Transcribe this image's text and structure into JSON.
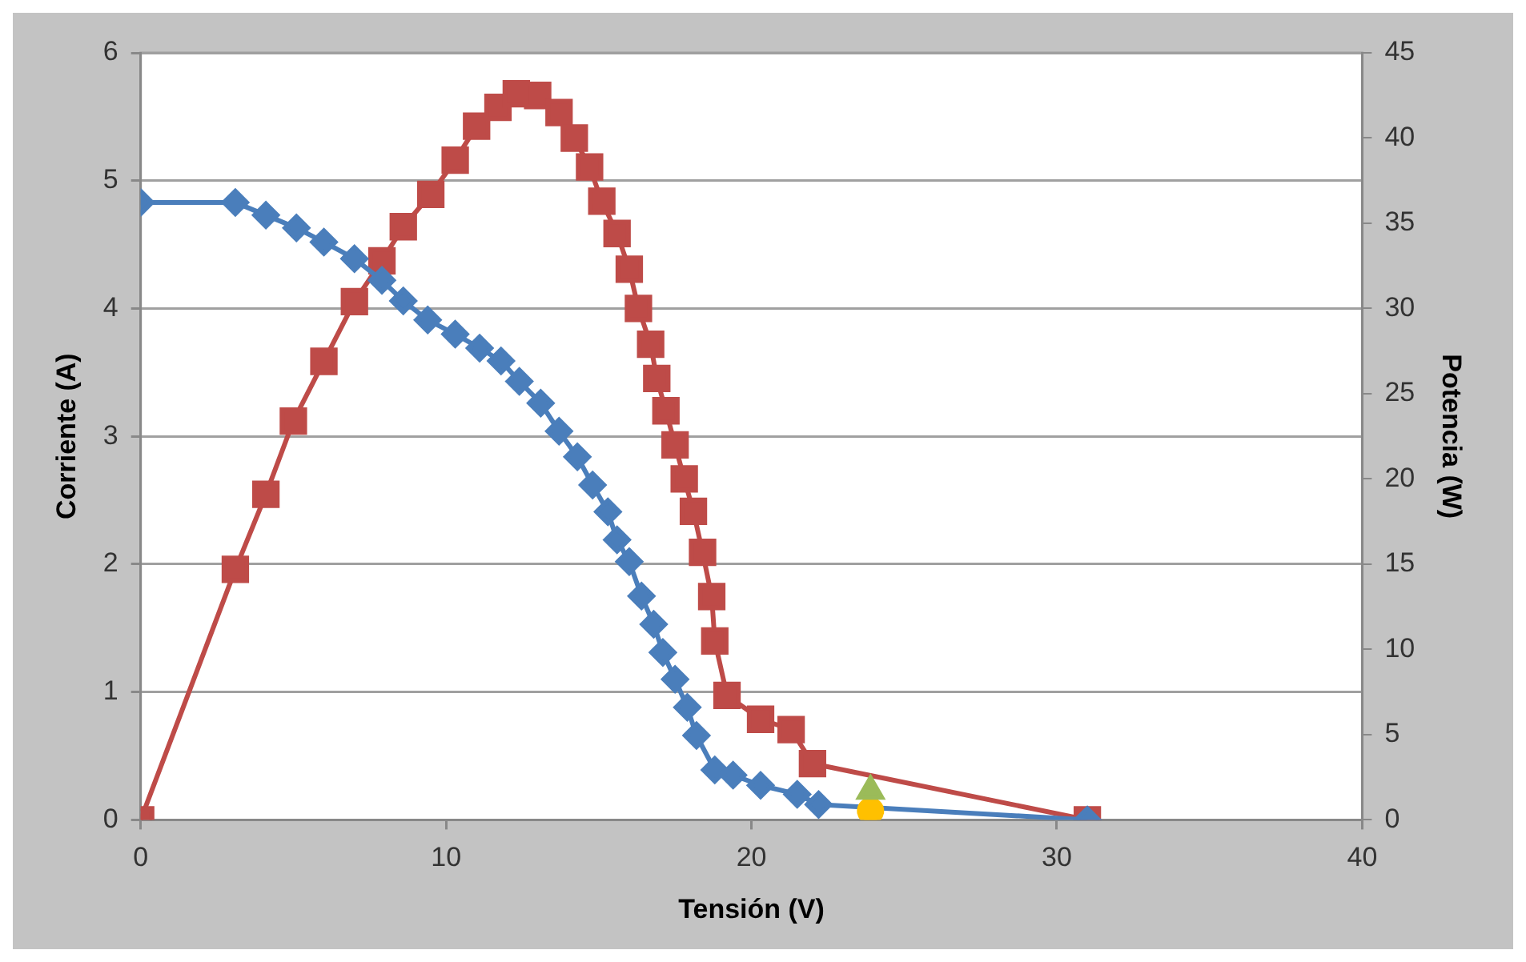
{
  "chart_data": {
    "type": "line",
    "xlabel": "Tensión (V)",
    "ylabel": "Corriente (A)",
    "y2label": "Potencia (W)",
    "xlim": [
      0,
      40
    ],
    "xticks": [
      0,
      10,
      20,
      30,
      40
    ],
    "ylim": [
      0,
      6
    ],
    "yticks": [
      0,
      1,
      2,
      3,
      4,
      5,
      6
    ],
    "y2lim": [
      0,
      45
    ],
    "y2ticks": [
      0,
      5,
      10,
      15,
      20,
      25,
      30,
      35,
      40,
      45
    ],
    "grid": "y",
    "legend": false,
    "series": [
      {
        "axis": "y",
        "marker": "diamond",
        "color": "#4a7ebb",
        "x": [
          0,
          3.1,
          4.1,
          5.1,
          6.0,
          7.0,
          7.9,
          8.6,
          9.4,
          10.3,
          11.1,
          11.8,
          12.4,
          13.1,
          13.7,
          14.3,
          14.8,
          15.3,
          15.6,
          16.0,
          16.4,
          16.8,
          17.1,
          17.5,
          17.9,
          18.2,
          18.8,
          19.4,
          20.3,
          21.5,
          22.2,
          31
        ],
        "values": [
          4.83,
          4.83,
          4.73,
          4.63,
          4.52,
          4.39,
          4.22,
          4.06,
          3.91,
          3.8,
          3.69,
          3.59,
          3.43,
          3.26,
          3.04,
          2.84,
          2.62,
          2.41,
          2.19,
          2.02,
          1.75,
          1.53,
          1.31,
          1.1,
          0.88,
          0.66,
          0.39,
          0.35,
          0.27,
          0.2,
          0.12,
          0
        ]
      },
      {
        "axis": "y2",
        "marker": "square",
        "color": "#be4b48",
        "x": [
          0,
          3.1,
          4.1,
          5.0,
          6.0,
          7.0,
          7.9,
          8.6,
          9.5,
          10.3,
          11.0,
          11.7,
          12.3,
          13.0,
          13.7,
          14.2,
          14.7,
          15.1,
          15.6,
          16.0,
          16.3,
          16.7,
          16.9,
          17.2,
          17.5,
          17.8,
          18.1,
          18.4,
          18.7,
          18.8,
          19.2,
          20.3,
          21.3,
          22.0,
          31
        ],
        "values": [
          0,
          14.7,
          19.1,
          23.4,
          26.9,
          30.4,
          32.8,
          34.8,
          36.7,
          38.7,
          40.7,
          41.8,
          42.6,
          42.5,
          41.5,
          40.0,
          38.3,
          36.3,
          34.4,
          32.3,
          30.0,
          27.9,
          25.9,
          24.0,
          22.0,
          20.0,
          18.1,
          15.7,
          13.1,
          10.5,
          7.3,
          5.9,
          5.3,
          3.3,
          0
        ]
      },
      {
        "type": "scatter",
        "axis": "y2",
        "marker": "triangle",
        "color": "#9bbb59",
        "x": [
          23.9
        ],
        "values": [
          1.7
        ]
      },
      {
        "type": "scatter",
        "axis": "y",
        "marker": "circle",
        "color": "#ffc000",
        "x": [
          23.9
        ],
        "values": [
          0.07
        ]
      }
    ]
  }
}
